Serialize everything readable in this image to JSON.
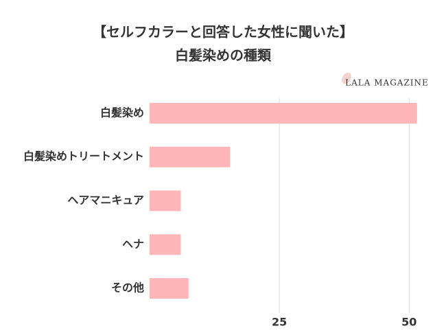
{
  "chart_data": {
    "type": "barh",
    "title": "【セルフカラーと回答した女性に聞いた】",
    "subtitle": "白髪染めの種類",
    "watermark": "LALA MAGAZINE",
    "categories": [
      "白髪染め",
      "白髪染めトリートメント",
      "ヘアマニキュア",
      "ヘナ",
      "その他"
    ],
    "values": [
      51.5,
      15.5,
      6,
      6,
      7.5
    ],
    "color": "#ffb6b9",
    "xlim": [
      0,
      53
    ],
    "xticks": [
      25,
      50
    ],
    "grid": true
  }
}
